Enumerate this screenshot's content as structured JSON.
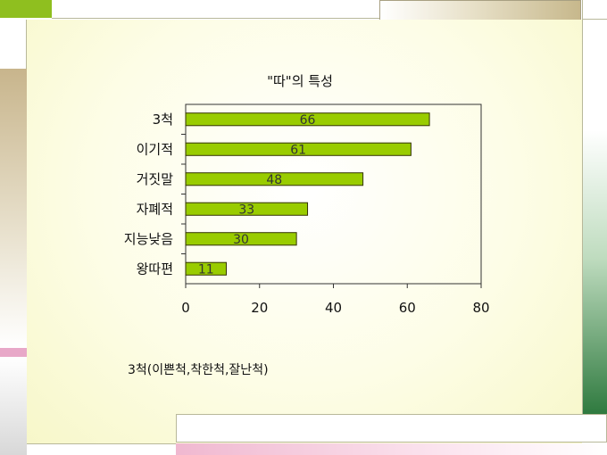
{
  "slide": {
    "footnote": "3척(이쁜척,착한척,잘난척)"
  },
  "colors": {
    "bar_fill": "#99cc00",
    "bar_stroke": "#333300",
    "slide_background": "#fbfbd9",
    "accent_green": "#8fbf1f",
    "accent_tan": "#c7b88c",
    "accent_pink": "#e8a8c8",
    "accent_dark_green": "#2f7a3f"
  },
  "chart_data": {
    "type": "bar",
    "orientation": "horizontal",
    "title": "\"따\"의 특성",
    "categories": [
      "3척",
      "이기적",
      "거짓말",
      "자폐적",
      "지능낮음",
      "왕따편"
    ],
    "values": [
      66,
      61,
      48,
      33,
      30,
      11
    ],
    "data_labels": [
      "66",
      "61",
      "48",
      "33",
      "30",
      "11"
    ],
    "xlim": [
      0,
      80
    ],
    "xticks": [
      0,
      20,
      40,
      60,
      80
    ],
    "xtick_labels": [
      "0",
      "20",
      "40",
      "60",
      "80"
    ],
    "xlabel": "",
    "ylabel": "",
    "grid": false,
    "legend": "none"
  }
}
